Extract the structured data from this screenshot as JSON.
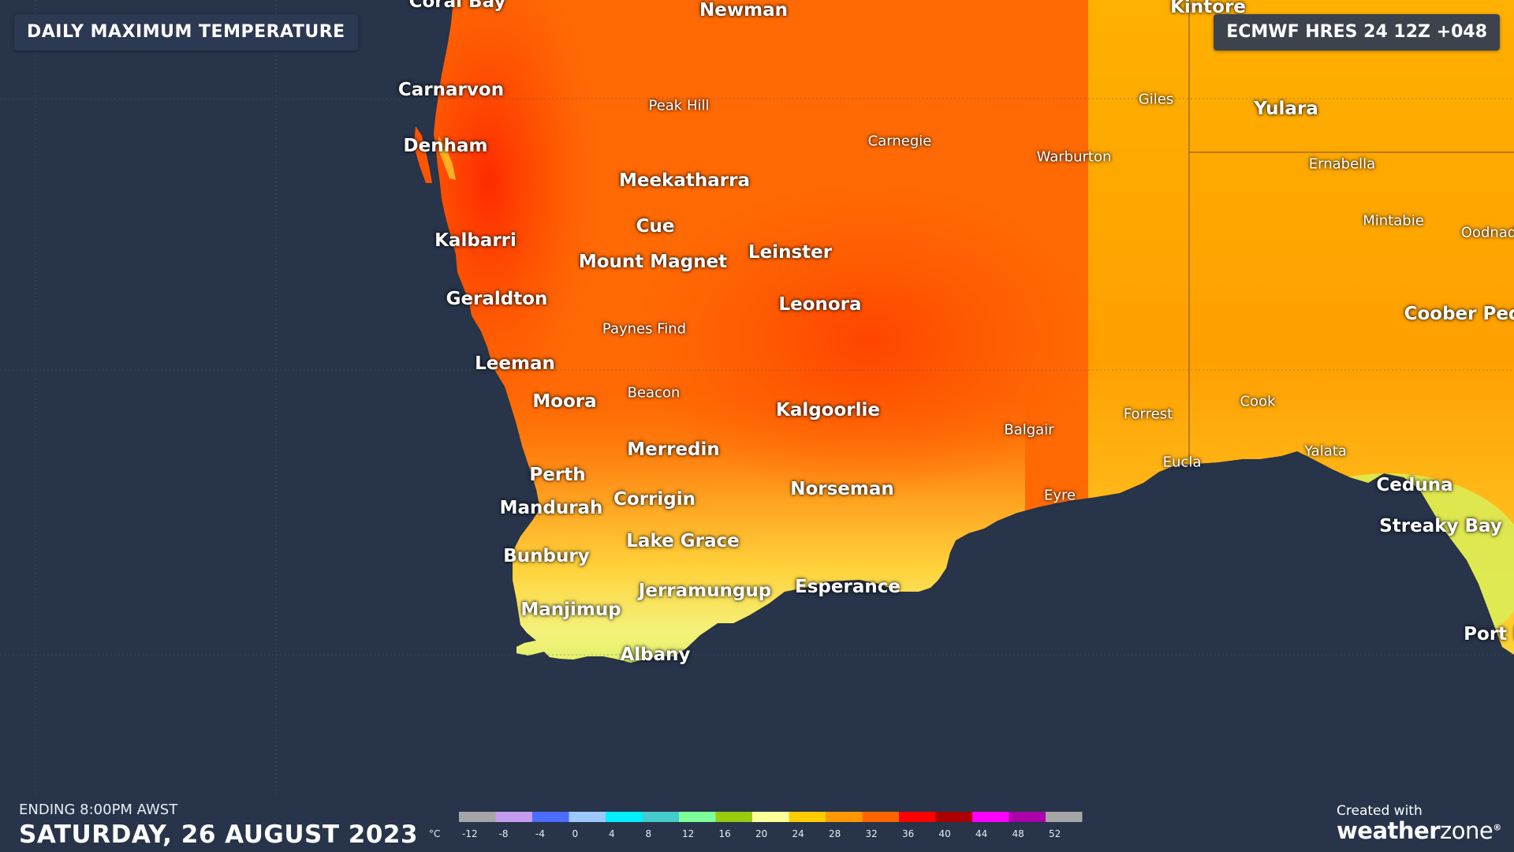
{
  "header": {
    "title": "DAILY MAXIMUM TEMPERATURE",
    "model_run": "ECMWF HRES 24 12Z +048"
  },
  "footer": {
    "ending": "ENDING 8:00PM AWST",
    "date": "SATURDAY, 26 AUGUST 2023",
    "credit": "Created with",
    "brand_primary": "weather",
    "brand_secondary": "zone",
    "brand_mark": "®"
  },
  "legend": {
    "unit": "°C",
    "ticks": [
      "-12",
      "-8",
      "-4",
      "0",
      "4",
      "8",
      "12",
      "16",
      "20",
      "24",
      "28",
      "32",
      "36",
      "40",
      "44",
      "48",
      "52"
    ],
    "colors": [
      "#a6a6a6",
      "#c69cf0",
      "#4a6cff",
      "#9ec9ff",
      "#00f0ff",
      "#44cccc",
      "#7dff99",
      "#99cc11",
      "#ffff99",
      "#ffcc00",
      "#ff9900",
      "#ff6600",
      "#ff0000",
      "#aa0000",
      "#ff00ff",
      "#aa00aa",
      "#a6a6a6"
    ]
  },
  "places": [
    {
      "name": "Coral Bay",
      "size": "major"
    },
    {
      "name": "Newman",
      "size": "major"
    },
    {
      "name": "Kintore",
      "size": "major"
    },
    {
      "name": "Carnarvon",
      "size": "major"
    },
    {
      "name": "Peak Hill",
      "size": "minor"
    },
    {
      "name": "Giles",
      "size": "minor"
    },
    {
      "name": "Yulara",
      "size": "major"
    },
    {
      "name": "Denham",
      "size": "major"
    },
    {
      "name": "Carnegie",
      "size": "minor"
    },
    {
      "name": "Warburton",
      "size": "minor"
    },
    {
      "name": "Ernabella",
      "size": "minor"
    },
    {
      "name": "Meekatharra",
      "size": "major"
    },
    {
      "name": "Mintabie",
      "size": "minor"
    },
    {
      "name": "Oodnad",
      "size": "minor"
    },
    {
      "name": "Cue",
      "size": "major"
    },
    {
      "name": "Kalbarri",
      "size": "major"
    },
    {
      "name": "Leinster",
      "size": "major"
    },
    {
      "name": "Mount Magnet",
      "size": "major"
    },
    {
      "name": "Geraldton",
      "size": "major"
    },
    {
      "name": "Leonora",
      "size": "major"
    },
    {
      "name": "Coober Ped",
      "size": "major"
    },
    {
      "name": "Paynes Find",
      "size": "minor"
    },
    {
      "name": "Leeman",
      "size": "major"
    },
    {
      "name": "Beacon",
      "size": "minor"
    },
    {
      "name": "Moora",
      "size": "major"
    },
    {
      "name": "Cook",
      "size": "minor"
    },
    {
      "name": "Kalgoorlie",
      "size": "major"
    },
    {
      "name": "Forrest",
      "size": "minor"
    },
    {
      "name": "Balgair",
      "size": "minor"
    },
    {
      "name": "Merredin",
      "size": "major"
    },
    {
      "name": "Yalata",
      "size": "minor"
    },
    {
      "name": "Eucla",
      "size": "minor"
    },
    {
      "name": "Perth",
      "size": "major"
    },
    {
      "name": "Ceduna",
      "size": "major"
    },
    {
      "name": "Norseman",
      "size": "major"
    },
    {
      "name": "Eyre",
      "size": "minor"
    },
    {
      "name": "Corrigin",
      "size": "major"
    },
    {
      "name": "Mandurah",
      "size": "major"
    },
    {
      "name": "Streaky Bay",
      "size": "major"
    },
    {
      "name": "Lake Grace",
      "size": "major"
    },
    {
      "name": "Bunbury",
      "size": "major"
    },
    {
      "name": "Jerramungup",
      "size": "major"
    },
    {
      "name": "Esperance",
      "size": "major"
    },
    {
      "name": "Manjimup",
      "size": "major"
    },
    {
      "name": "Port L",
      "size": "major"
    },
    {
      "name": "Albany",
      "size": "major"
    }
  ]
}
